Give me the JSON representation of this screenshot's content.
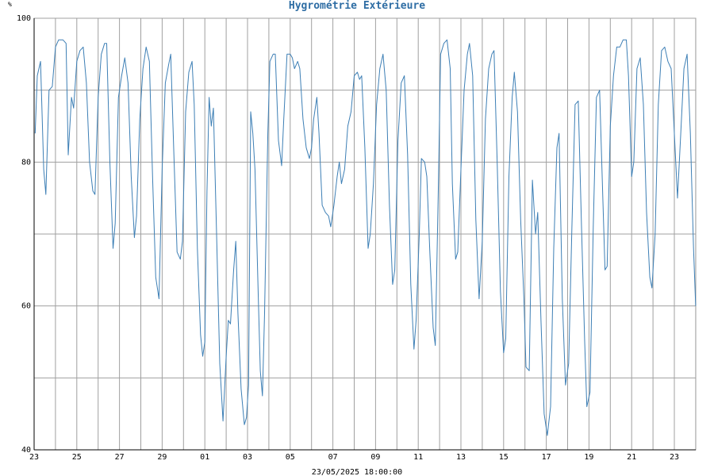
{
  "chart_data": {
    "type": "line",
    "title": "Hygrométrie Extérieure",
    "y_unit": "%",
    "footer": "23/05/2025 18:00:00",
    "ylim": [
      40,
      100
    ],
    "y_ticks": [
      {
        "value": 100,
        "label": "100"
      },
      {
        "value": 80,
        "label": "80"
      },
      {
        "value": 60,
        "label": "60"
      },
      {
        "value": 40,
        "label": "40"
      }
    ],
    "xlim": [
      0,
      31.2
    ],
    "x_ticks": [
      {
        "value": 0,
        "label": "23"
      },
      {
        "value": 2,
        "label": "25"
      },
      {
        "value": 4,
        "label": "27"
      },
      {
        "value": 6,
        "label": "29"
      },
      {
        "value": 8,
        "label": "01"
      },
      {
        "value": 10,
        "label": "03"
      },
      {
        "value": 12,
        "label": "05"
      },
      {
        "value": 14,
        "label": "07"
      },
      {
        "value": 16,
        "label": "09"
      },
      {
        "value": 18,
        "label": "11"
      },
      {
        "value": 20,
        "label": "13"
      },
      {
        "value": 22,
        "label": "15"
      },
      {
        "value": 24,
        "label": "17"
      },
      {
        "value": 26,
        "label": "19"
      },
      {
        "value": 28,
        "label": "21"
      },
      {
        "value": 30,
        "label": "23"
      }
    ],
    "grid": true,
    "colors": {
      "line": "#3d7fb5",
      "grid": "#a0a0a0",
      "title": "#2e6da4",
      "axis": "#000000"
    },
    "series": [
      {
        "values": [
          [
            0.05,
            84
          ],
          [
            0.15,
            92
          ],
          [
            0.3,
            94
          ],
          [
            0.45,
            79
          ],
          [
            0.55,
            75.5
          ],
          [
            0.7,
            90
          ],
          [
            0.85,
            90.5
          ],
          [
            1.0,
            96
          ],
          [
            1.15,
            97
          ],
          [
            1.35,
            97
          ],
          [
            1.5,
            96.5
          ],
          [
            1.6,
            81
          ],
          [
            1.75,
            89
          ],
          [
            1.85,
            87.5
          ],
          [
            2.0,
            94
          ],
          [
            2.15,
            95.5
          ],
          [
            2.3,
            96
          ],
          [
            2.45,
            91
          ],
          [
            2.6,
            80
          ],
          [
            2.75,
            76
          ],
          [
            2.85,
            75.5
          ],
          [
            3.0,
            89
          ],
          [
            3.15,
            95
          ],
          [
            3.3,
            96.5
          ],
          [
            3.4,
            96.5
          ],
          [
            3.55,
            80
          ],
          [
            3.7,
            68
          ],
          [
            3.8,
            71.5
          ],
          [
            3.95,
            89
          ],
          [
            4.1,
            92
          ],
          [
            4.25,
            94.5
          ],
          [
            4.4,
            91
          ],
          [
            4.55,
            78
          ],
          [
            4.7,
            69.5
          ],
          [
            4.8,
            72.5
          ],
          [
            4.95,
            86
          ],
          [
            5.1,
            93
          ],
          [
            5.25,
            96
          ],
          [
            5.4,
            94
          ],
          [
            5.55,
            78
          ],
          [
            5.7,
            64
          ],
          [
            5.85,
            61
          ],
          [
            6.0,
            79
          ],
          [
            6.15,
            91
          ],
          [
            6.3,
            93.5
          ],
          [
            6.4,
            95
          ],
          [
            6.55,
            81
          ],
          [
            6.7,
            67.5
          ],
          [
            6.85,
            66.5
          ],
          [
            6.95,
            69
          ],
          [
            7.1,
            87
          ],
          [
            7.25,
            92.5
          ],
          [
            7.4,
            94
          ],
          [
            7.5,
            88
          ],
          [
            7.65,
            68
          ],
          [
            7.8,
            56
          ],
          [
            7.9,
            53
          ],
          [
            8.0,
            55
          ],
          [
            8.1,
            76
          ],
          [
            8.2,
            89
          ],
          [
            8.3,
            85
          ],
          [
            8.4,
            87.5
          ],
          [
            8.55,
            70
          ],
          [
            8.7,
            52
          ],
          [
            8.85,
            44
          ],
          [
            9.0,
            53
          ],
          [
            9.1,
            58
          ],
          [
            9.2,
            57.5
          ],
          [
            9.35,
            65
          ],
          [
            9.45,
            69
          ],
          [
            9.55,
            59
          ],
          [
            9.7,
            48.5
          ],
          [
            9.85,
            43.5
          ],
          [
            9.95,
            44.5
          ],
          [
            10.05,
            49
          ],
          [
            10.15,
            87
          ],
          [
            10.25,
            84
          ],
          [
            10.35,
            79
          ],
          [
            10.5,
            62
          ],
          [
            10.6,
            51
          ],
          [
            10.7,
            47.5
          ],
          [
            10.8,
            59
          ],
          [
            10.95,
            84
          ],
          [
            11.05,
            94
          ],
          [
            11.2,
            95
          ],
          [
            11.3,
            95
          ],
          [
            11.45,
            83
          ],
          [
            11.6,
            79.5
          ],
          [
            11.7,
            86
          ],
          [
            11.85,
            95
          ],
          [
            12.0,
            95
          ],
          [
            12.1,
            94.5
          ],
          [
            12.2,
            93
          ],
          [
            12.35,
            94
          ],
          [
            12.45,
            93
          ],
          [
            12.6,
            86
          ],
          [
            12.75,
            82
          ],
          [
            12.9,
            80.5
          ],
          [
            13.0,
            82
          ],
          [
            13.1,
            86
          ],
          [
            13.25,
            89
          ],
          [
            13.35,
            84
          ],
          [
            13.5,
            74
          ],
          [
            13.65,
            73
          ],
          [
            13.8,
            72.5
          ],
          [
            13.9,
            71
          ],
          [
            14.05,
            74
          ],
          [
            14.2,
            78
          ],
          [
            14.3,
            80
          ],
          [
            14.4,
            77
          ],
          [
            14.55,
            79
          ],
          [
            14.7,
            85
          ],
          [
            14.85,
            87
          ],
          [
            15.0,
            92
          ],
          [
            15.15,
            92.5
          ],
          [
            15.25,
            91.5
          ],
          [
            15.35,
            92
          ],
          [
            15.5,
            82
          ],
          [
            15.65,
            68
          ],
          [
            15.75,
            70
          ],
          [
            15.9,
            77
          ],
          [
            16.05,
            88
          ],
          [
            16.2,
            93
          ],
          [
            16.35,
            95
          ],
          [
            16.5,
            90
          ],
          [
            16.65,
            74
          ],
          [
            16.8,
            63
          ],
          [
            16.9,
            65
          ],
          [
            17.05,
            83
          ],
          [
            17.2,
            91
          ],
          [
            17.35,
            92
          ],
          [
            17.5,
            81
          ],
          [
            17.65,
            63
          ],
          [
            17.8,
            54
          ],
          [
            17.9,
            58
          ],
          [
            18.05,
            70
          ],
          [
            18.15,
            80.5
          ],
          [
            18.3,
            80
          ],
          [
            18.4,
            78
          ],
          [
            18.55,
            67
          ],
          [
            18.7,
            57
          ],
          [
            18.8,
            54.5
          ],
          [
            18.95,
            78
          ],
          [
            19.05,
            95
          ],
          [
            19.2,
            96.5
          ],
          [
            19.35,
            97
          ],
          [
            19.5,
            93
          ],
          [
            19.6,
            77
          ],
          [
            19.75,
            66.5
          ],
          [
            19.85,
            67.5
          ],
          [
            20.0,
            79
          ],
          [
            20.15,
            90
          ],
          [
            20.3,
            95
          ],
          [
            20.4,
            96.5
          ],
          [
            20.55,
            92
          ],
          [
            20.7,
            72
          ],
          [
            20.85,
            61
          ],
          [
            21.0,
            69
          ],
          [
            21.15,
            86
          ],
          [
            21.3,
            93
          ],
          [
            21.45,
            95
          ],
          [
            21.55,
            95.5
          ],
          [
            21.7,
            80
          ],
          [
            21.85,
            62
          ],
          [
            22.0,
            53.5
          ],
          [
            22.1,
            55.5
          ],
          [
            22.25,
            78
          ],
          [
            22.4,
            89
          ],
          [
            22.5,
            92.5
          ],
          [
            22.65,
            87
          ],
          [
            22.8,
            72
          ],
          [
            22.95,
            61
          ],
          [
            23.05,
            51.5
          ],
          [
            23.2,
            51
          ],
          [
            23.35,
            77.5
          ],
          [
            23.5,
            70
          ],
          [
            23.6,
            73
          ],
          [
            23.75,
            58
          ],
          [
            23.9,
            45
          ],
          [
            24.05,
            42
          ],
          [
            24.2,
            46
          ],
          [
            24.35,
            68
          ],
          [
            24.5,
            82
          ],
          [
            24.6,
            84
          ],
          [
            24.75,
            61
          ],
          [
            24.9,
            49
          ],
          [
            25.05,
            52
          ],
          [
            25.2,
            71
          ],
          [
            25.35,
            88
          ],
          [
            25.5,
            88.5
          ],
          [
            25.65,
            71
          ],
          [
            25.8,
            55
          ],
          [
            25.9,
            46
          ],
          [
            26.05,
            48
          ],
          [
            26.2,
            71
          ],
          [
            26.35,
            89
          ],
          [
            26.5,
            90
          ],
          [
            26.6,
            80
          ],
          [
            26.75,
            65
          ],
          [
            26.85,
            65.5
          ],
          [
            27.0,
            85
          ],
          [
            27.15,
            92
          ],
          [
            27.3,
            96
          ],
          [
            27.45,
            96
          ],
          [
            27.6,
            97
          ],
          [
            27.75,
            97
          ],
          [
            27.85,
            92
          ],
          [
            28.0,
            78
          ],
          [
            28.1,
            80
          ],
          [
            28.25,
            93
          ],
          [
            28.4,
            94.5
          ],
          [
            28.55,
            88
          ],
          [
            28.7,
            73
          ],
          [
            28.85,
            64
          ],
          [
            28.95,
            62.5
          ],
          [
            29.1,
            70
          ],
          [
            29.25,
            88
          ],
          [
            29.4,
            95.5
          ],
          [
            29.55,
            96
          ],
          [
            29.7,
            94
          ],
          [
            29.85,
            93
          ],
          [
            30.0,
            84
          ],
          [
            30.15,
            75
          ],
          [
            30.3,
            84
          ],
          [
            30.45,
            93
          ],
          [
            30.6,
            95
          ],
          [
            30.75,
            84
          ],
          [
            30.9,
            68
          ],
          [
            31.0,
            60
          ]
        ]
      }
    ]
  }
}
